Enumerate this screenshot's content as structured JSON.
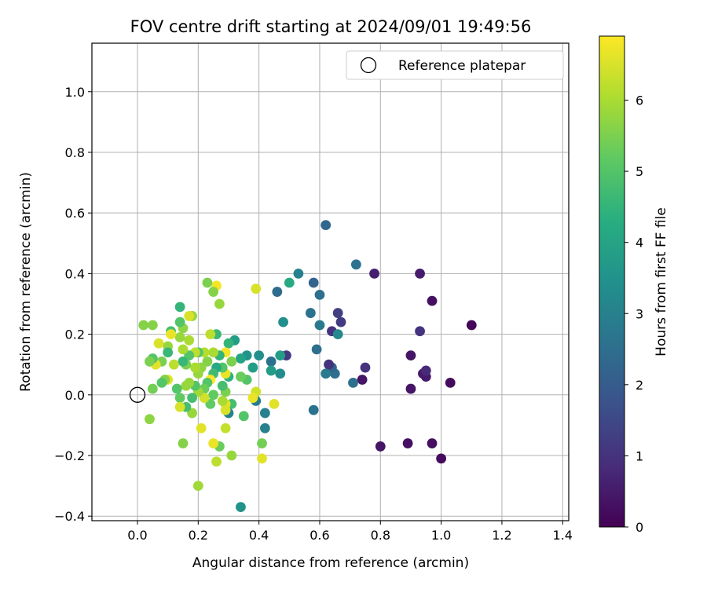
{
  "chart_data": {
    "type": "scatter",
    "title": "FOV centre drift starting at 2024/09/01 19:49:56",
    "xlabel": "Angular distance from reference (arcmin)",
    "ylabel": "Rotation from reference (arcmin)",
    "xlim": [
      -0.15,
      1.42
    ],
    "ylim": [
      -0.415,
      1.16
    ],
    "xticks": [
      "0.0",
      "0.2",
      "0.4",
      "0.6",
      "0.8",
      "1.0",
      "1.2",
      "1.4"
    ],
    "yticks": [
      "−0.4",
      "−0.2",
      "0.0",
      "0.2",
      "0.4",
      "0.6",
      "0.8",
      "1.0"
    ],
    "grid": true,
    "legend": {
      "position": "top-right",
      "entries": [
        "Reference platepar"
      ]
    },
    "reference_point": {
      "x": 0.0,
      "y": 0.0,
      "marker": "open-circle",
      "color": "#000000"
    },
    "colorbar": {
      "label": "Hours from first FF file",
      "min": 0,
      "max": 6.9,
      "ticks": [
        "0",
        "1",
        "2",
        "3",
        "4",
        "5",
        "6"
      ],
      "colormap": "viridis"
    },
    "points": [
      {
        "x": 1.1,
        "y": 0.23,
        "h": 0.1
      },
      {
        "x": 1.03,
        "y": 0.04,
        "h": 0.2
      },
      {
        "x": 1.0,
        "y": -0.21,
        "h": 0.2
      },
      {
        "x": 0.97,
        "y": -0.16,
        "h": 0.3
      },
      {
        "x": 0.97,
        "y": 0.31,
        "h": 0.3
      },
      {
        "x": 0.95,
        "y": 0.06,
        "h": 0.5
      },
      {
        "x": 0.94,
        "y": 0.07,
        "h": 0.5
      },
      {
        "x": 0.95,
        "y": 0.08,
        "h": 0.8
      },
      {
        "x": 0.93,
        "y": 0.4,
        "h": 0.5
      },
      {
        "x": 0.93,
        "y": 0.21,
        "h": 1.0
      },
      {
        "x": 0.9,
        "y": 0.13,
        "h": 0.4
      },
      {
        "x": 0.9,
        "y": 0.02,
        "h": 0.4
      },
      {
        "x": 0.89,
        "y": -0.16,
        "h": 0.3
      },
      {
        "x": 0.8,
        "y": -0.17,
        "h": 0.4
      },
      {
        "x": 0.78,
        "y": 0.4,
        "h": 0.6
      },
      {
        "x": 0.75,
        "y": 0.09,
        "h": 1.0
      },
      {
        "x": 0.74,
        "y": 0.05,
        "h": 0.4
      },
      {
        "x": 0.72,
        "y": 0.43,
        "h": 2.6
      },
      {
        "x": 0.71,
        "y": 0.04,
        "h": 2.5
      },
      {
        "x": 0.67,
        "y": 0.24,
        "h": 1.2
      },
      {
        "x": 0.66,
        "y": 0.27,
        "h": 1.3
      },
      {
        "x": 0.64,
        "y": 0.21,
        "h": 1.0
      },
      {
        "x": 0.66,
        "y": 0.2,
        "h": 3.2
      },
      {
        "x": 0.65,
        "y": 0.07,
        "h": 2.5
      },
      {
        "x": 0.64,
        "y": 0.09,
        "h": 2.2
      },
      {
        "x": 0.63,
        "y": 0.1,
        "h": 1.0
      },
      {
        "x": 0.62,
        "y": 0.56,
        "h": 2.3
      },
      {
        "x": 0.62,
        "y": 0.07,
        "h": 2.8
      },
      {
        "x": 0.6,
        "y": 0.33,
        "h": 2.5
      },
      {
        "x": 0.6,
        "y": 0.23,
        "h": 2.8
      },
      {
        "x": 0.59,
        "y": 0.15,
        "h": 2.5
      },
      {
        "x": 0.58,
        "y": 0.37,
        "h": 2.2
      },
      {
        "x": 0.58,
        "y": -0.05,
        "h": 2.6
      },
      {
        "x": 0.57,
        "y": 0.27,
        "h": 2.6
      },
      {
        "x": 0.53,
        "y": 0.4,
        "h": 3.0
      },
      {
        "x": 0.5,
        "y": 0.37,
        "h": 4.2
      },
      {
        "x": 0.49,
        "y": 0.13,
        "h": 1.2
      },
      {
        "x": 0.48,
        "y": 0.24,
        "h": 3.4
      },
      {
        "x": 0.47,
        "y": 0.13,
        "h": 3.8
      },
      {
        "x": 0.47,
        "y": 0.07,
        "h": 3.3
      },
      {
        "x": 0.46,
        "y": 0.34,
        "h": 2.4
      },
      {
        "x": 0.44,
        "y": 0.11,
        "h": 2.6
      },
      {
        "x": 0.44,
        "y": 0.08,
        "h": 3.8
      },
      {
        "x": 0.45,
        "y": -0.03,
        "h": 6.6
      },
      {
        "x": 0.42,
        "y": -0.06,
        "h": 3.0
      },
      {
        "x": 0.42,
        "y": -0.11,
        "h": 3.0
      },
      {
        "x": 0.41,
        "y": -0.16,
        "h": 5.4
      },
      {
        "x": 0.41,
        "y": -0.21,
        "h": 6.6
      },
      {
        "x": 0.4,
        "y": 0.13,
        "h": 3.4
      },
      {
        "x": 0.39,
        "y": 0.35,
        "h": 6.5
      },
      {
        "x": 0.39,
        "y": -0.02,
        "h": 2.9
      },
      {
        "x": 0.39,
        "y": 0.01,
        "h": 6.4
      },
      {
        "x": 0.38,
        "y": -0.01,
        "h": 6.7
      },
      {
        "x": 0.38,
        "y": 0.09,
        "h": 3.8
      },
      {
        "x": 0.36,
        "y": 0.13,
        "h": 3.5
      },
      {
        "x": 0.36,
        "y": 0.05,
        "h": 5.0
      },
      {
        "x": 0.35,
        "y": -0.07,
        "h": 5.0
      },
      {
        "x": 0.34,
        "y": -0.37,
        "h": 3.5
      },
      {
        "x": 0.34,
        "y": 0.12,
        "h": 4.0
      },
      {
        "x": 0.34,
        "y": 0.06,
        "h": 5.3
      },
      {
        "x": 0.32,
        "y": 0.18,
        "h": 3.8
      },
      {
        "x": 0.31,
        "y": 0.11,
        "h": 5.5
      },
      {
        "x": 0.31,
        "y": -0.03,
        "h": 4.8
      },
      {
        "x": 0.31,
        "y": -0.2,
        "h": 5.8
      },
      {
        "x": 0.3,
        "y": -0.06,
        "h": 3.0
      },
      {
        "x": 0.3,
        "y": 0.17,
        "h": 4.5
      },
      {
        "x": 0.3,
        "y": 0.06,
        "h": 4.4
      },
      {
        "x": 0.29,
        "y": 0.14,
        "h": 6.8
      },
      {
        "x": 0.29,
        "y": 0.07,
        "h": 6.7
      },
      {
        "x": 0.29,
        "y": -0.03,
        "h": 6.6
      },
      {
        "x": 0.29,
        "y": -0.05,
        "h": 6.5
      },
      {
        "x": 0.29,
        "y": -0.11,
        "h": 6.3
      },
      {
        "x": 0.29,
        "y": 0.01,
        "h": 5.5
      },
      {
        "x": 0.28,
        "y": 0.09,
        "h": 5.0
      },
      {
        "x": 0.28,
        "y": -0.02,
        "h": 6.0
      },
      {
        "x": 0.28,
        "y": 0.03,
        "h": 4.8
      },
      {
        "x": 0.27,
        "y": 0.3,
        "h": 5.8
      },
      {
        "x": 0.27,
        "y": -0.17,
        "h": 5.3
      },
      {
        "x": 0.27,
        "y": 0.13,
        "h": 4.5
      },
      {
        "x": 0.26,
        "y": -0.22,
        "h": 6.2
      },
      {
        "x": 0.26,
        "y": 0.36,
        "h": 6.8
      },
      {
        "x": 0.26,
        "y": 0.2,
        "h": 4.6
      },
      {
        "x": 0.26,
        "y": 0.09,
        "h": 4.2
      },
      {
        "x": 0.25,
        "y": 0.34,
        "h": 5.6
      },
      {
        "x": 0.25,
        "y": 0.14,
        "h": 6.0
      },
      {
        "x": 0.25,
        "y": 0.07,
        "h": 4.7
      },
      {
        "x": 0.25,
        "y": 0.0,
        "h": 5.2
      },
      {
        "x": 0.25,
        "y": -0.16,
        "h": 6.7
      },
      {
        "x": 0.24,
        "y": 0.2,
        "h": 6.2
      },
      {
        "x": 0.24,
        "y": 0.05,
        "h": 6.9
      },
      {
        "x": 0.24,
        "y": -0.03,
        "h": 5.2
      },
      {
        "x": 0.23,
        "y": 0.37,
        "h": 5.5
      },
      {
        "x": 0.23,
        "y": 0.11,
        "h": 5.6
      },
      {
        "x": 0.23,
        "y": 0.04,
        "h": 5.0
      },
      {
        "x": 0.22,
        "y": 0.14,
        "h": 6.1
      },
      {
        "x": 0.22,
        "y": 0.02,
        "h": 5.3
      },
      {
        "x": 0.22,
        "y": -0.01,
        "h": 6.4
      },
      {
        "x": 0.21,
        "y": 0.09,
        "h": 5.7
      },
      {
        "x": 0.21,
        "y": -0.11,
        "h": 6.6
      },
      {
        "x": 0.2,
        "y": 0.14,
        "h": 5.0
      },
      {
        "x": 0.2,
        "y": 0.07,
        "h": 5.8
      },
      {
        "x": 0.2,
        "y": 0.01,
        "h": 5.9
      },
      {
        "x": 0.2,
        "y": -0.3,
        "h": 5.9
      },
      {
        "x": 0.19,
        "y": 0.14,
        "h": 6.2
      },
      {
        "x": 0.19,
        "y": 0.09,
        "h": 6.0
      },
      {
        "x": 0.19,
        "y": 0.03,
        "h": 5.0
      },
      {
        "x": 0.18,
        "y": -0.06,
        "h": 5.8
      },
      {
        "x": 0.18,
        "y": -0.01,
        "h": 4.8
      },
      {
        "x": 0.18,
        "y": 0.26,
        "h": 5.8
      },
      {
        "x": 0.17,
        "y": 0.26,
        "h": 6.5
      },
      {
        "x": 0.17,
        "y": 0.18,
        "h": 6.0
      },
      {
        "x": 0.17,
        "y": 0.13,
        "h": 5.0
      },
      {
        "x": 0.17,
        "y": 0.04,
        "h": 5.8
      },
      {
        "x": 0.16,
        "y": 0.1,
        "h": 5.5
      },
      {
        "x": 0.16,
        "y": 0.03,
        "h": 5.8
      },
      {
        "x": 0.16,
        "y": -0.04,
        "h": 4.8
      },
      {
        "x": 0.15,
        "y": -0.16,
        "h": 5.6
      },
      {
        "x": 0.15,
        "y": 0.22,
        "h": 5.7
      },
      {
        "x": 0.15,
        "y": 0.15,
        "h": 6.0
      },
      {
        "x": 0.15,
        "y": 0.11,
        "h": 4.6
      },
      {
        "x": 0.14,
        "y": 0.29,
        "h": 4.5
      },
      {
        "x": 0.14,
        "y": 0.24,
        "h": 5.0
      },
      {
        "x": 0.14,
        "y": 0.19,
        "h": 5.8
      },
      {
        "x": 0.14,
        "y": -0.01,
        "h": 5.2
      },
      {
        "x": 0.14,
        "y": -0.04,
        "h": 6.5
      },
      {
        "x": 0.13,
        "y": 0.02,
        "h": 5.0
      },
      {
        "x": 0.12,
        "y": 0.1,
        "h": 6.2
      },
      {
        "x": 0.11,
        "y": 0.21,
        "h": 4.8
      },
      {
        "x": 0.11,
        "y": 0.2,
        "h": 6.7
      },
      {
        "x": 0.1,
        "y": 0.16,
        "h": 5.8
      },
      {
        "x": 0.1,
        "y": 0.14,
        "h": 4.6
      },
      {
        "x": 0.1,
        "y": 0.05,
        "h": 6.6
      },
      {
        "x": 0.09,
        "y": 0.05,
        "h": 5.6
      },
      {
        "x": 0.08,
        "y": 0.11,
        "h": 5.5
      },
      {
        "x": 0.08,
        "y": 0.04,
        "h": 5.0
      },
      {
        "x": 0.07,
        "y": 0.17,
        "h": 6.5
      },
      {
        "x": 0.06,
        "y": 0.1,
        "h": 6.6
      },
      {
        "x": 0.05,
        "y": 0.12,
        "h": 5.0
      },
      {
        "x": 0.05,
        "y": 0.02,
        "h": 5.4
      },
      {
        "x": 0.05,
        "y": 0.23,
        "h": 5.6
      },
      {
        "x": 0.04,
        "y": 0.11,
        "h": 5.5
      },
      {
        "x": 0.04,
        "y": -0.08,
        "h": 5.7
      },
      {
        "x": 0.02,
        "y": 0.23,
        "h": 5.6
      }
    ]
  }
}
